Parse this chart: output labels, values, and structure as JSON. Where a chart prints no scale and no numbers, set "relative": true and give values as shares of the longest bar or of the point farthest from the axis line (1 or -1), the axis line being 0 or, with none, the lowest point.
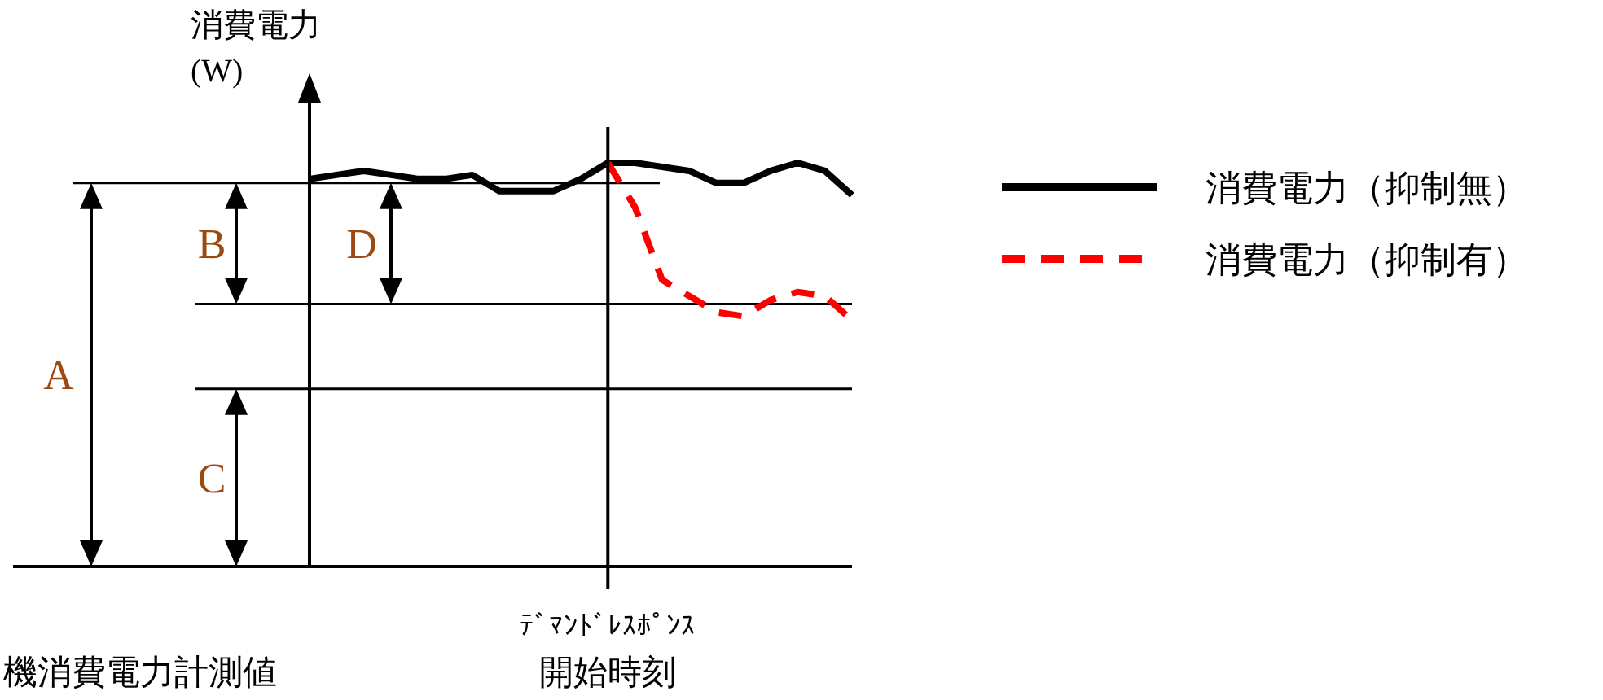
{
  "chart_data": {
    "type": "line",
    "relative": true,
    "ylabel": "消費電力\n(W)",
    "categories": [
      null,
      null,
      null,
      null,
      null,
      null,
      null,
      null,
      null,
      null,
      null,
      null,
      null,
      null,
      null,
      null,
      null,
      null,
      null,
      null,
      null
    ],
    "series": [
      {
        "name": "消費電力（抑制無）",
        "color": "#000000",
        "line_style": "solid",
        "values": [
          0.96,
          0.97,
          0.98,
          0.97,
          0.96,
          0.96,
          0.97,
          0.93,
          0.93,
          0.93,
          0.96,
          1.0,
          1.0,
          0.99,
          0.98,
          0.95,
          0.95,
          0.98,
          1.0,
          0.98,
          0.92
        ]
      },
      {
        "name": "消費電力（抑制有）",
        "color": "#ff0000",
        "line_style": "dashed",
        "values": [
          null,
          null,
          null,
          null,
          null,
          null,
          null,
          null,
          null,
          null,
          null,
          1.0,
          0.89,
          0.71,
          0.67,
          0.63,
          0.62,
          0.66,
          0.68,
          0.67,
          0.61
        ]
      }
    ],
    "ref_lines": [
      {
        "axis": "y",
        "value": 0.95,
        "label": null
      },
      {
        "axis": "y",
        "value": 0.65,
        "label": null
      },
      {
        "axis": "y",
        "value": 0.44,
        "label": null
      }
    ],
    "annotations": [
      "A",
      "B",
      "C",
      "D",
      "機消費電力計測値",
      "ﾃﾞﾏﾝﾄﾞﾚｽﾎﾟﾝｽ",
      "開始時刻"
    ],
    "legend": "right",
    "grid": false
  }
}
